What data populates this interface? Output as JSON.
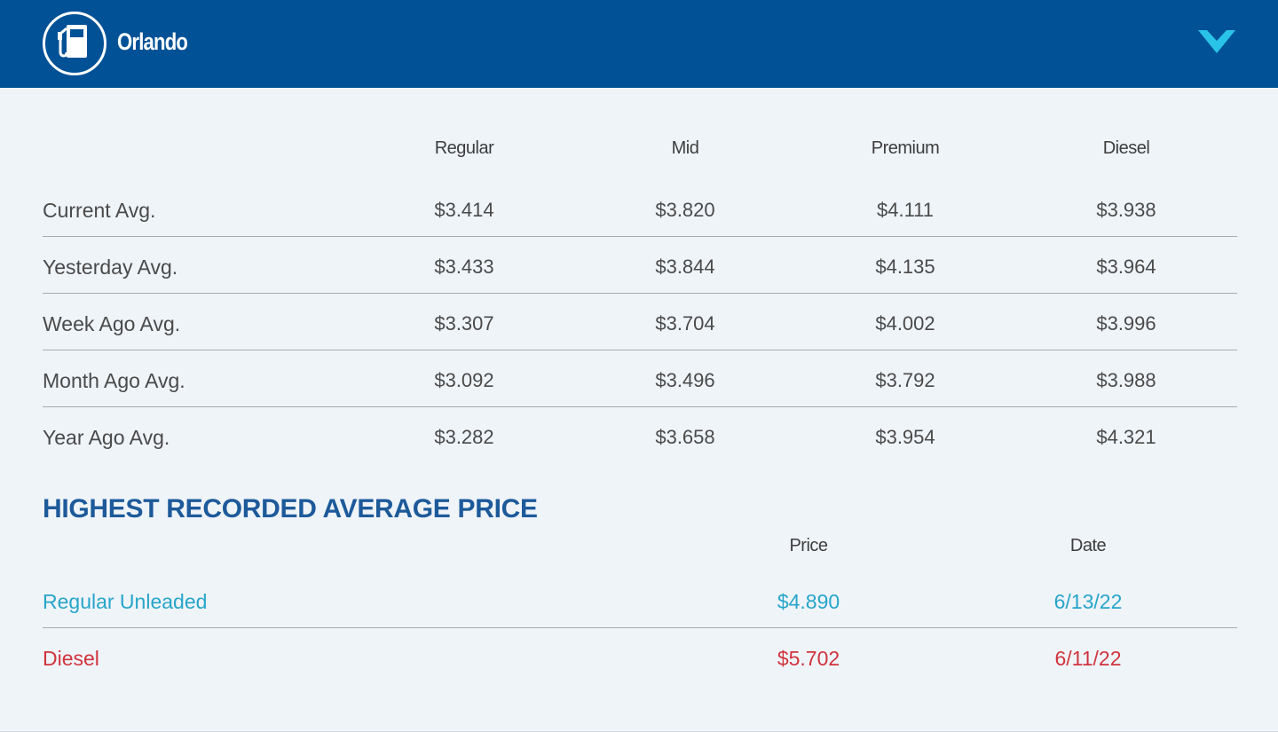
{
  "header": {
    "city": "Orlando",
    "icon": "gas-pump-icon",
    "toggle_icon": "chevron-down-icon",
    "background_color": "#005195",
    "accent_color": "#2ac3e8"
  },
  "averages": {
    "columns": [
      "Regular",
      "Mid",
      "Premium",
      "Diesel"
    ],
    "rows": [
      {
        "label": "Current Avg.",
        "values": [
          "$3.414",
          "$3.820",
          "$4.111",
          "$3.938"
        ]
      },
      {
        "label": "Yesterday Avg.",
        "values": [
          "$3.433",
          "$3.844",
          "$4.135",
          "$3.964"
        ]
      },
      {
        "label": "Week Ago Avg.",
        "values": [
          "$3.307",
          "$3.704",
          "$4.002",
          "$3.996"
        ]
      },
      {
        "label": "Month Ago Avg.",
        "values": [
          "$3.092",
          "$3.496",
          "$3.792",
          "$3.988"
        ]
      },
      {
        "label": "Year Ago Avg.",
        "values": [
          "$3.282",
          "$3.658",
          "$3.954",
          "$4.321"
        ]
      }
    ]
  },
  "record": {
    "title": "HIGHEST RECORDED AVERAGE PRICE",
    "columns": [
      "Price",
      "Date"
    ],
    "rows": [
      {
        "label": "Regular Unleaded",
        "price": "$4.890",
        "date": "6/13/22",
        "color": "#27a5c9"
      },
      {
        "label": "Diesel",
        "price": "$5.702",
        "date": "6/11/22",
        "color": "#d0343d"
      }
    ]
  }
}
